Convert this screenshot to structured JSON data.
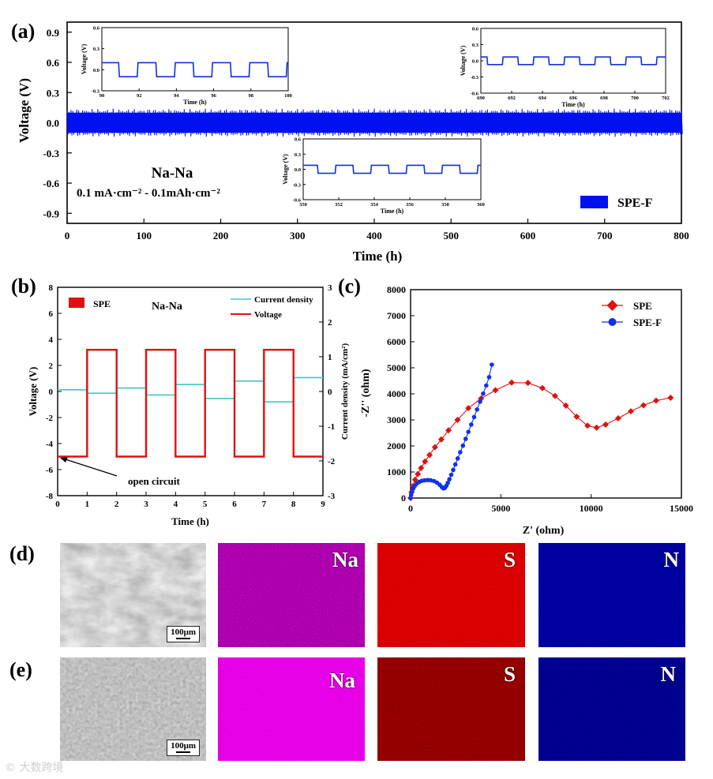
{
  "figure": {
    "panel_labels": [
      "(a)",
      "(b)",
      "(c)",
      "(d)",
      "(e)"
    ],
    "watermark": "大数跨境"
  },
  "chart_data": [
    {
      "id": "a",
      "type": "line",
      "xlabel": "Time (h)",
      "ylabel": "Voltage (V)",
      "xlim": [
        0,
        800
      ],
      "ylim": [
        -1.0,
        1.0
      ],
      "xticks": [
        0,
        100,
        200,
        300,
        400,
        500,
        600,
        700,
        800
      ],
      "yticks": [
        "0.9",
        "0.6",
        "0.3",
        "0.0",
        "-0.3",
        "-0.6",
        "-0.9"
      ],
      "series": [
        {
          "name": "SPE-F",
          "color": "#0010ee",
          "t_start": 0,
          "t_end": 800,
          "v_half_amplitude": 0.1
        }
      ],
      "annotations": [
        "Na-Na",
        "0.1 mA·cm⁻² - 0.1mAh·cm⁻²"
      ],
      "insets": [
        {
          "xlabel": "Time (h)",
          "ylabel": "Voltage (V)",
          "xlim": [
            90,
            100
          ],
          "xticks": [
            "90",
            "92",
            "94",
            "96",
            "98",
            "100"
          ],
          "ylim": [
            -0.3,
            0.6
          ],
          "yticks": [
            "0.6",
            "0.3",
            "0.0",
            "-0.3"
          ],
          "amp": 0.1,
          "period": 2,
          "t0": 90.9
        },
        {
          "xlabel": "Time (h)",
          "ylabel": "Voltage (V)",
          "xlim": [
            350,
            360
          ],
          "xticks": [
            "350",
            "352",
            "354",
            "356",
            "358",
            "360"
          ],
          "ylim": [
            -0.6,
            0.6
          ],
          "yticks": [
            "0.6",
            "0.3",
            "0.0",
            "-0.3",
            "-0.6"
          ],
          "amp": 0.08,
          "period": 2,
          "t0": 350.8
        },
        {
          "xlabel": "Time (h)",
          "ylabel": "Voltage (V)",
          "xlim": [
            690,
            702
          ],
          "xticks": [
            "690",
            "692",
            "694",
            "696",
            "698",
            "700",
            "702"
          ],
          "ylim": [
            -0.6,
            0.6
          ],
          "yticks": [
            "0.6",
            "0.3",
            "0.0",
            "-0.3",
            "-0.6"
          ],
          "amp": 0.07,
          "period": 2,
          "t0": 690.4
        }
      ]
    },
    {
      "id": "b",
      "type": "line",
      "xlabel": "Time (h)",
      "ylabel": "Voltage (V)",
      "y2label": "Current density (mA/cm²)",
      "xlim": [
        0,
        9
      ],
      "ylim": [
        -8,
        8
      ],
      "y2lim": [
        -3,
        3
      ],
      "xticks": [
        "0",
        "1",
        "2",
        "3",
        "4",
        "5",
        "6",
        "7",
        "8",
        "9"
      ],
      "yticks": [
        "8",
        "6",
        "4",
        "2",
        "0",
        "-2",
        "-4",
        "-6",
        "-8"
      ],
      "y2ticks": [
        "3",
        "2",
        "1",
        "0",
        "-1",
        "-2",
        "-3"
      ],
      "legend_left": "SPE",
      "title": "Na-Na",
      "legend": [
        "Current density",
        "Voltage"
      ],
      "series": [
        {
          "name": "Voltage",
          "color": "#e01010",
          "axis": "left",
          "points": [
            [
              0,
              -5.0
            ],
            [
              1.0,
              -5.0
            ],
            [
              1.0,
              3.2
            ],
            [
              2.0,
              3.2
            ],
            [
              2.0,
              -5.0
            ],
            [
              3.0,
              -5.0
            ],
            [
              3.0,
              3.2
            ],
            [
              4.0,
              3.2
            ],
            [
              4.0,
              -5.0
            ],
            [
              5.0,
              -5.0
            ],
            [
              5.0,
              3.2
            ],
            [
              6.0,
              3.2
            ],
            [
              6.0,
              -5.0
            ],
            [
              7.0,
              -5.0
            ],
            [
              7.0,
              3.2
            ],
            [
              8.0,
              3.2
            ],
            [
              8.0,
              -5.0
            ],
            [
              9.0,
              -5.0
            ]
          ]
        },
        {
          "name": "Current density",
          "color": "#40c8c8",
          "axis": "right",
          "segments": [
            [
              0,
              1,
              0.05
            ],
            [
              1,
              2,
              -0.05
            ],
            [
              2,
              3,
              0.1
            ],
            [
              3,
              4,
              -0.1
            ],
            [
              4,
              5,
              0.2
            ],
            [
              5,
              6,
              -0.2
            ],
            [
              6,
              7,
              0.3
            ],
            [
              7,
              8,
              -0.3
            ],
            [
              8,
              9,
              0.4
            ]
          ]
        }
      ],
      "annotation": "open circuit"
    },
    {
      "id": "c",
      "type": "scatter",
      "xlabel": "Z' (ohm)",
      "ylabel": "-Z'' (ohm)",
      "xlim": [
        0,
        15000
      ],
      "ylim": [
        0,
        8000
      ],
      "xticks": [
        "0",
        "5000",
        "10000",
        "15000"
      ],
      "yticks": [
        "8000",
        "7000",
        "6000",
        "5000",
        "4000",
        "3000",
        "2000",
        "1000",
        "0"
      ],
      "series": [
        {
          "name": "SPE",
          "color": "#e01010",
          "marker": "diamond",
          "points": [
            [
              0,
              0
            ],
            [
              50,
              220
            ],
            [
              130,
              460
            ],
            [
              250,
              700
            ],
            [
              400,
              920
            ],
            [
              580,
              1150
            ],
            [
              800,
              1400
            ],
            [
              1050,
              1650
            ],
            [
              1350,
              1950
            ],
            [
              1700,
              2250
            ],
            [
              2100,
              2600
            ],
            [
              2600,
              3000
            ],
            [
              3200,
              3450
            ],
            [
              3900,
              3820
            ],
            [
              4700,
              4140
            ],
            [
              5600,
              4430
            ],
            [
              6500,
              4420
            ],
            [
              7300,
              4220
            ],
            [
              8000,
              3920
            ],
            [
              8600,
              3550
            ],
            [
              9200,
              3120
            ],
            [
              9800,
              2780
            ],
            [
              10300,
              2700
            ],
            [
              10800,
              2820
            ],
            [
              11500,
              3060
            ],
            [
              12200,
              3330
            ],
            [
              12900,
              3560
            ],
            [
              13600,
              3740
            ],
            [
              14400,
              3850
            ]
          ]
        },
        {
          "name": "SPE-F",
          "color": "#1030f0",
          "marker": "circle",
          "points": [
            [
              0,
              0
            ],
            [
              30,
              120
            ],
            [
              80,
              250
            ],
            [
              150,
              370
            ],
            [
              240,
              470
            ],
            [
              350,
              560
            ],
            [
              480,
              620
            ],
            [
              620,
              660
            ],
            [
              780,
              680
            ],
            [
              950,
              690
            ],
            [
              1120,
              680
            ],
            [
              1300,
              650
            ],
            [
              1460,
              590
            ],
            [
              1610,
              510
            ],
            [
              1730,
              420
            ],
            [
              1820,
              370
            ],
            [
              1900,
              390
            ],
            [
              1980,
              470
            ],
            [
              2060,
              580
            ],
            [
              2150,
              720
            ],
            [
              2250,
              890
            ],
            [
              2360,
              1080
            ],
            [
              2480,
              1290
            ],
            [
              2610,
              1520
            ],
            [
              2750,
              1760
            ],
            [
              2900,
              2010
            ],
            [
              3050,
              2270
            ],
            [
              3200,
              2540
            ],
            [
              3360,
              2820
            ],
            [
              3520,
              3110
            ],
            [
              3680,
              3400
            ],
            [
              3850,
              3700
            ],
            [
              4020,
              4010
            ],
            [
              4190,
              4320
            ],
            [
              4350,
              4640
            ],
            [
              4500,
              5120
            ]
          ]
        }
      ],
      "legend": [
        "SPE",
        "SPE-F"
      ]
    }
  ],
  "sem": {
    "rows": [
      {
        "label": "(d)",
        "scale_bar": "100μm",
        "elements": [
          "Na",
          "S",
          "N"
        ]
      },
      {
        "label": "(e)",
        "scale_bar": "100μm",
        "elements": [
          "Na",
          "S",
          "N"
        ]
      }
    ]
  }
}
